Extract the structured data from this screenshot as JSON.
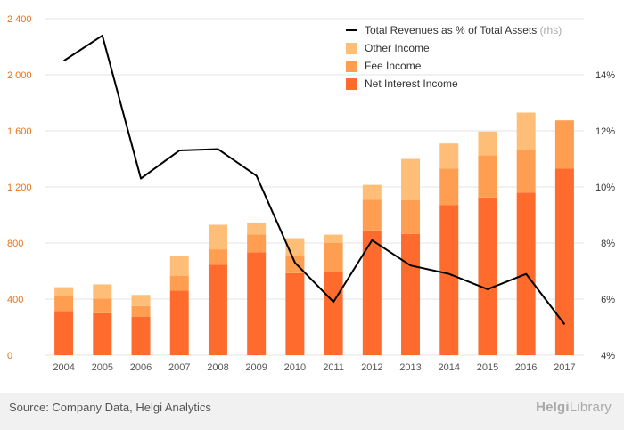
{
  "chart_data": {
    "type": "bar",
    "stacked": true,
    "categories": [
      "2004",
      "2005",
      "2006",
      "2007",
      "2008",
      "2009",
      "2010",
      "2011",
      "2012",
      "2013",
      "2014",
      "2015",
      "2016",
      "2017"
    ],
    "series": [
      {
        "name": "Net Interest Income",
        "color": "#ff6b2d",
        "axis": "left",
        "values": [
          315,
          300,
          275,
          460,
          645,
          735,
          585,
          595,
          890,
          865,
          1070,
          1125,
          1160,
          1330
        ]
      },
      {
        "name": "Fee Income",
        "color": "#ff9e50",
        "axis": "left",
        "values": [
          110,
          105,
          75,
          105,
          110,
          125,
          125,
          205,
          220,
          240,
          260,
          300,
          305,
          345
        ]
      },
      {
        "name": "Other Income",
        "color": "#ffbe78",
        "axis": "left",
        "values": [
          60,
          100,
          80,
          145,
          175,
          85,
          125,
          60,
          105,
          295,
          180,
          170,
          265,
          0
        ]
      }
    ],
    "line_series": {
      "name": "Total Revenues as % of Total Assets",
      "suffix": "(rhs)",
      "color": "#000000",
      "axis": "right",
      "values": [
        14.5,
        15.4,
        10.3,
        11.3,
        11.35,
        10.4,
        7.3,
        5.9,
        8.1,
        7.2,
        6.9,
        6.35,
        6.9,
        5.1
      ]
    },
    "y_left": {
      "min": 0,
      "max": 2400,
      "ticks": [
        0,
        400,
        800,
        1200,
        1600,
        2000,
        2400
      ],
      "tick_labels": [
        "0",
        "400",
        "800",
        "1 200",
        "1 600",
        "2 000",
        "2 400"
      ]
    },
    "y_right": {
      "min": 4,
      "max": 16,
      "ticks": [
        4,
        6,
        8,
        10,
        12,
        14
      ],
      "tick_labels": [
        "4%",
        "6%",
        "8%",
        "10%",
        "12%",
        "14%"
      ]
    },
    "grid": true,
    "legend_position": "top-right",
    "legend_order": [
      "Total Revenues as % of Total Assets",
      "Other Income",
      "Fee Income",
      "Net Interest Income"
    ]
  },
  "footer": {
    "source": "Source: Company Data, Helgi Analytics",
    "logo_bold": "Helgi",
    "logo_rest": "Library"
  }
}
